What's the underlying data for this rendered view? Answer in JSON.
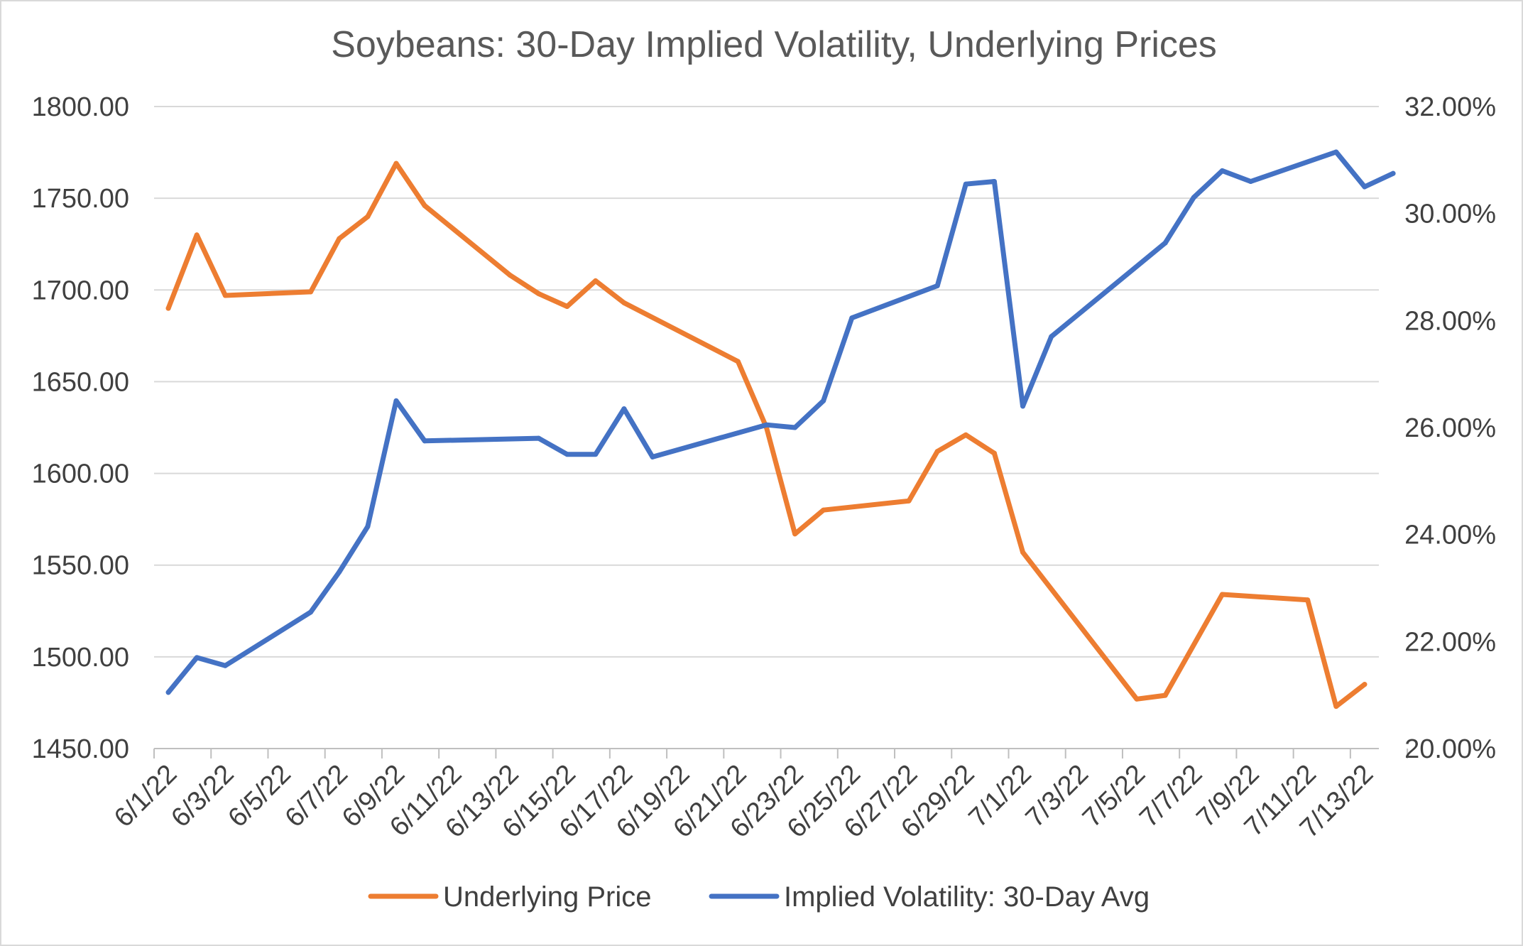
{
  "chart_data": {
    "type": "line",
    "title": "Soybeans: 30-Day Implied Volatility, Underlying Prices",
    "x_tick_labels": [
      "6/1/22",
      "6/3/22",
      "6/5/22",
      "6/7/22",
      "6/9/22",
      "6/11/22",
      "6/13/22",
      "6/15/22",
      "6/17/22",
      "6/19/22",
      "6/21/22",
      "6/23/22",
      "6/25/22",
      "6/27/22",
      "6/29/22",
      "7/1/22",
      "7/3/22",
      "7/5/22",
      "7/7/22",
      "7/9/22",
      "7/11/22",
      "7/13/22"
    ],
    "y_left": {
      "min": 1450,
      "max": 1800,
      "ticks": [
        "1800.00",
        "1750.00",
        "1700.00",
        "1650.00",
        "1600.00",
        "1550.00",
        "1500.00",
        "1450.00"
      ]
    },
    "y_right": {
      "min": 20,
      "max": 32,
      "ticks": [
        "32.00%",
        "30.00%",
        "28.00%",
        "26.00%",
        "24.00%",
        "22.00%",
        "20.00%"
      ]
    },
    "series": [
      {
        "name": "Underlying Price",
        "axis": "left",
        "color": "#ed7d31",
        "points": [
          {
            "day": 1,
            "value": 1690
          },
          {
            "day": 2,
            "value": 1730
          },
          {
            "day": 3,
            "value": 1697
          },
          {
            "day": 6,
            "value": 1699
          },
          {
            "day": 7,
            "value": 1728
          },
          {
            "day": 8,
            "value": 1740
          },
          {
            "day": 9,
            "value": 1769
          },
          {
            "day": 10,
            "value": 1746
          },
          {
            "day": 13,
            "value": 1708
          },
          {
            "day": 14,
            "value": 1698
          },
          {
            "day": 15,
            "value": 1691
          },
          {
            "day": 16,
            "value": 1705
          },
          {
            "day": 17,
            "value": 1693
          },
          {
            "day": 21,
            "value": 1661
          },
          {
            "day": 22,
            "value": 1625
          },
          {
            "day": 23,
            "value": 1567
          },
          {
            "day": 24,
            "value": 1580
          },
          {
            "day": 27,
            "value": 1585
          },
          {
            "day": 28,
            "value": 1612
          },
          {
            "day": 29,
            "value": 1621
          },
          {
            "day": 30,
            "value": 1611
          },
          {
            "day": 31,
            "value": 1557
          },
          {
            "day": 35,
            "value": 1477
          },
          {
            "day": 36,
            "value": 1479
          },
          {
            "day": 38,
            "value": 1534
          },
          {
            "day": 41,
            "value": 1531
          },
          {
            "day": 42,
            "value": 1473
          },
          {
            "day": 43,
            "value": 1485
          }
        ]
      },
      {
        "name": "Implied Volatility: 30-Day Avg",
        "axis": "right",
        "color": "#4472c4",
        "points": [
          {
            "day": 1,
            "value": 21.05
          },
          {
            "day": 2,
            "value": 21.7
          },
          {
            "day": 3,
            "value": 21.55
          },
          {
            "day": 6,
            "value": 22.55
          },
          {
            "day": 7,
            "value": 23.3
          },
          {
            "day": 8,
            "value": 24.15
          },
          {
            "day": 9,
            "value": 26.5
          },
          {
            "day": 10,
            "value": 25.75
          },
          {
            "day": 14,
            "value": 25.8
          },
          {
            "day": 15,
            "value": 25.5
          },
          {
            "day": 16,
            "value": 25.5
          },
          {
            "day": 17,
            "value": 26.35
          },
          {
            "day": 18,
            "value": 25.45
          },
          {
            "day": 22,
            "value": 26.05
          },
          {
            "day": 23,
            "value": 26.0
          },
          {
            "day": 24,
            "value": 26.5
          },
          {
            "day": 25,
            "value": 28.05
          },
          {
            "day": 28,
            "value": 28.65
          },
          {
            "day": 29,
            "value": 30.55
          },
          {
            "day": 30,
            "value": 30.6
          },
          {
            "day": 31,
            "value": 26.4
          },
          {
            "day": 32,
            "value": 27.7
          },
          {
            "day": 36,
            "value": 29.45
          },
          {
            "day": 37,
            "value": 30.3
          },
          {
            "day": 38,
            "value": 30.8
          },
          {
            "day": 39,
            "value": 30.6
          },
          {
            "day": 42,
            "value": 31.15
          },
          {
            "day": 43,
            "value": 30.5
          },
          {
            "day": 44,
            "value": 30.75
          }
        ]
      }
    ],
    "legend_position": "bottom",
    "grid": true
  }
}
